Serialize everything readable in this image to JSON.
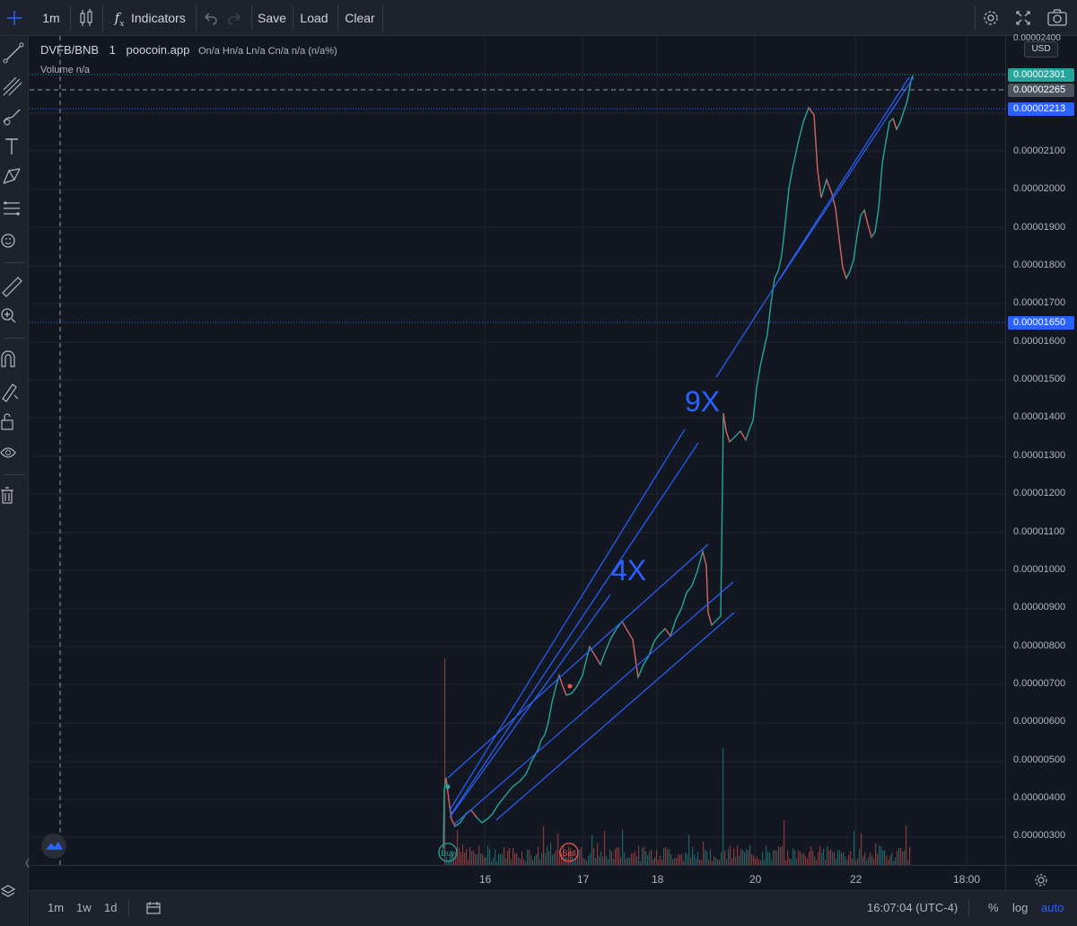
{
  "toolbar": {
    "interval": "1m",
    "indicators_label": "Indicators",
    "save_label": "Save",
    "load_label": "Load",
    "clear_label": "Clear"
  },
  "legend": {
    "symbol": "DVFB/BNB",
    "interval": "1",
    "source": "poocoin.app",
    "ohlc": "On/a Hn/a Ln/a Cn/a n/a (n/a%)",
    "volume": "Volume n/a"
  },
  "price_axis": {
    "currency_button": "USD",
    "top_label": "0.00002400",
    "ticks": [
      "0.00002100",
      "0.00002000",
      "0.00001900",
      "0.00001800",
      "0.00001700",
      "0.00001600",
      "0.00001500",
      "0.00001400",
      "0.00001300",
      "0.00001200",
      "0.00001100",
      "0.00001000",
      "0.00000900",
      "0.00000800",
      "0.00000700",
      "0.00000600",
      "0.00000500",
      "0.00000400",
      "0.00000300"
    ],
    "tag_last": "0.00002301",
    "tag_crosshair": "0.00002265",
    "tag_level_high": "0.00002213",
    "tag_level_low": "0.00001650",
    "colors": {
      "last": "#26a69a",
      "crosshair": "#363a45",
      "level": "#2962ff"
    }
  },
  "time_axis": {
    "ticks": [
      "16",
      "17",
      "18",
      "20",
      "22",
      "18:00"
    ]
  },
  "annotations": {
    "big": "9X",
    "small": "4X"
  },
  "markers": {
    "buy": "Buy",
    "sell": "Sell"
  },
  "bottom": {
    "ranges": [
      "1m",
      "1w",
      "1d"
    ],
    "clock": "16:07:04 (UTC-4)",
    "percent": "%",
    "log": "log",
    "auto": "auto"
  }
}
